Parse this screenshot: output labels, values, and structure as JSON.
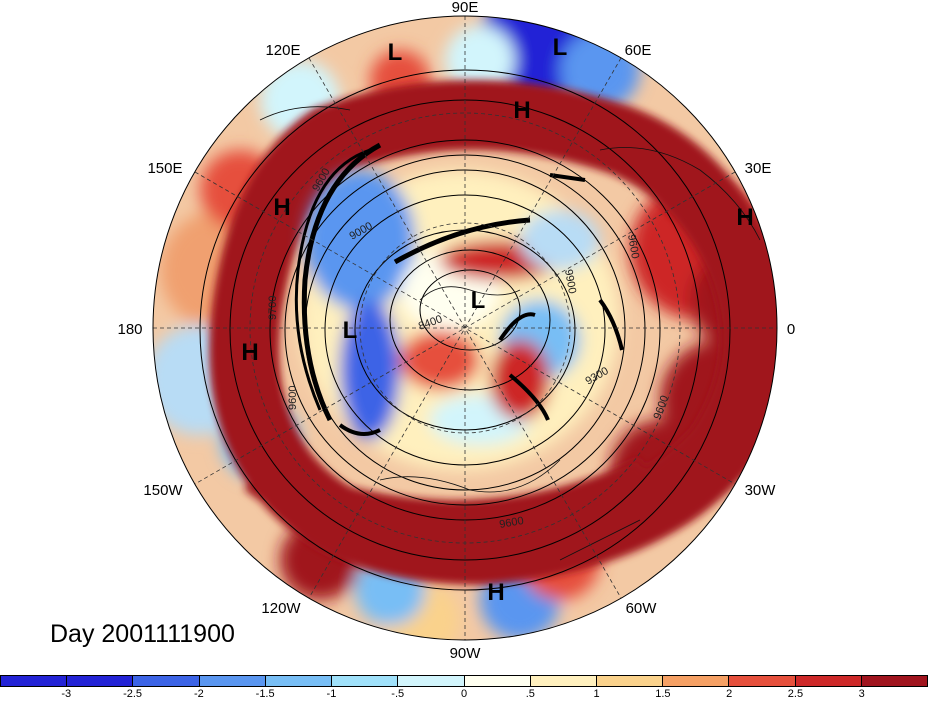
{
  "title": "Day 2001111900",
  "longitude_labels": [
    "90E",
    "60E",
    "30E",
    "0",
    "30W",
    "60W",
    "90W",
    "120W",
    "150W",
    "180",
    "150E",
    "120E"
  ],
  "pressure_systems": [
    {
      "type": "L"
    },
    {
      "type": "L"
    },
    {
      "type": "H"
    },
    {
      "type": "H"
    },
    {
      "type": "H"
    },
    {
      "type": "L"
    },
    {
      "type": "L"
    },
    {
      "type": "H"
    },
    {
      "type": "H"
    }
  ],
  "contour_labels": [
    "9600",
    "9000",
    "9700",
    "9600",
    "8400",
    "9300",
    "9600",
    "9600",
    "9900",
    "9600"
  ],
  "colorbar": {
    "ticks": [
      "-3",
      "-2.5",
      "-2",
      "-1.5",
      "-1",
      "-.5",
      "0",
      ".5",
      "1",
      "1.5",
      "2",
      "2.5",
      "3"
    ],
    "colors": [
      "#2323d6",
      "#3c64e6",
      "#5a96f0",
      "#78bef5",
      "#a0e1fa",
      "#d2f5fc",
      "#fffff0",
      "#fff0be",
      "#fad28c",
      "#f5a064",
      "#e6503c",
      "#cd2828",
      "#a0141e"
    ]
  },
  "colors": {
    "positive_anomaly": "#a0141e",
    "negative_anomaly": "#3c64e6"
  }
}
